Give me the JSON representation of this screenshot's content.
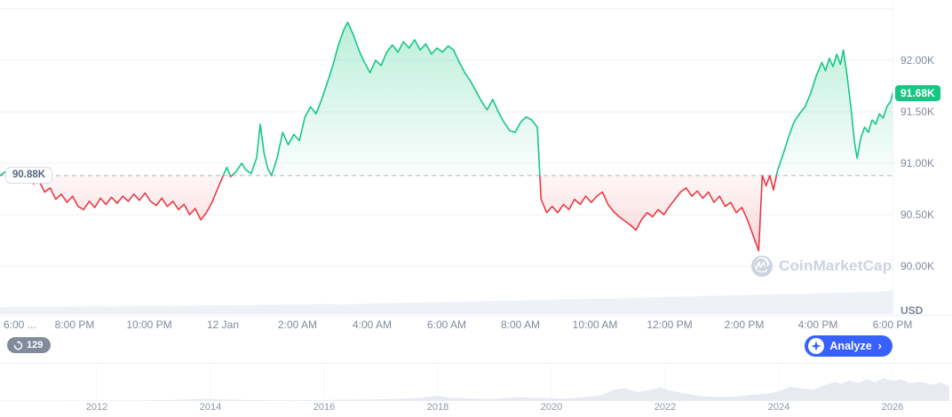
{
  "chart": {
    "baseline_label": "90.88K",
    "current_price_label": "91.68K",
    "y_axis_labels": [
      "92.00K",
      "91.50K",
      "91.00K",
      "90.50K",
      "90.00K"
    ],
    "y_axis_unit": "USD",
    "x_axis_labels": [
      "6:00 ...",
      "8:00 PM",
      "10:00 PM",
      "12 Jan",
      "2:00 AM",
      "4:00 AM",
      "6:00 AM",
      "8:00 AM",
      "10:00 AM",
      "12:00 PM",
      "2:00 PM",
      "4:00 PM",
      "6:00 PM"
    ],
    "watermark": "CoinMarketCap"
  },
  "toolbar": {
    "refresh_count": "129",
    "analyze_label": "Analyze",
    "analyze_chevron": "›"
  },
  "navigator": {
    "year_labels": [
      "2012",
      "2014",
      "2016",
      "2018",
      "2020",
      "2022",
      "2024",
      "2026"
    ]
  },
  "colors": {
    "green": "#16c784",
    "red": "#ea3943",
    "blue": "#3861fb",
    "grid": "#eff2f5",
    "axis_text": "#808a9d",
    "volume_fill": "#eef1f6",
    "navigator_fill": "#e7ebf1"
  },
  "chart_data": {
    "type": "area",
    "title": "BTC/USD intraday price with 90.88K baseline",
    "baseline": 90.88,
    "last_price": 91.68,
    "ylim": [
      89.95,
      92.55
    ],
    "y_ticks": [
      92.0,
      91.5,
      91.0,
      90.5,
      90.0
    ],
    "grid_prices": [
      92.5,
      92.0,
      91.5,
      91.0,
      90.5,
      90.0
    ],
    "x_hours_range": [
      0,
      24
    ],
    "x_tick_hours": [
      0,
      2,
      4,
      6,
      8,
      10,
      12,
      14,
      16,
      18,
      20,
      22,
      24
    ],
    "points": [
      [
        0,
        90.88
      ],
      [
        0.15,
        90.92
      ],
      [
        0.3,
        90.86
      ],
      [
        0.45,
        90.9
      ],
      [
        0.6,
        90.84
      ],
      [
        0.75,
        90.87
      ],
      [
        0.9,
        90.8
      ],
      [
        1.05,
        90.83
      ],
      [
        1.2,
        90.72
      ],
      [
        1.35,
        90.76
      ],
      [
        1.5,
        90.65
      ],
      [
        1.65,
        90.7
      ],
      [
        1.8,
        90.62
      ],
      [
        1.95,
        90.68
      ],
      [
        2.1,
        90.58
      ],
      [
        2.25,
        90.55
      ],
      [
        2.4,
        90.63
      ],
      [
        2.55,
        90.57
      ],
      [
        2.7,
        90.66
      ],
      [
        2.85,
        90.6
      ],
      [
        3,
        90.67
      ],
      [
        3.15,
        90.61
      ],
      [
        3.3,
        90.68
      ],
      [
        3.45,
        90.63
      ],
      [
        3.6,
        90.7
      ],
      [
        3.75,
        90.64
      ],
      [
        3.9,
        90.71
      ],
      [
        4.05,
        90.63
      ],
      [
        4.2,
        90.59
      ],
      [
        4.35,
        90.66
      ],
      [
        4.5,
        90.58
      ],
      [
        4.65,
        90.63
      ],
      [
        4.8,
        90.55
      ],
      [
        4.95,
        90.6
      ],
      [
        5.1,
        90.5
      ],
      [
        5.25,
        90.56
      ],
      [
        5.4,
        90.45
      ],
      [
        5.55,
        90.52
      ],
      [
        5.7,
        90.62
      ],
      [
        5.85,
        90.75
      ],
      [
        6,
        90.88
      ],
      [
        6.1,
        90.96
      ],
      [
        6.2,
        90.87
      ],
      [
        6.35,
        90.92
      ],
      [
        6.5,
        91
      ],
      [
        6.6,
        90.94
      ],
      [
        6.75,
        90.9
      ],
      [
        6.9,
        91.05
      ],
      [
        7,
        91.38
      ],
      [
        7.1,
        91.1
      ],
      [
        7.2,
        90.95
      ],
      [
        7.3,
        90.88
      ],
      [
        7.45,
        91.05
      ],
      [
        7.6,
        91.3
      ],
      [
        7.75,
        91.18
      ],
      [
        7.9,
        91.28
      ],
      [
        8.05,
        91.22
      ],
      [
        8.2,
        91.45
      ],
      [
        8.35,
        91.55
      ],
      [
        8.5,
        91.48
      ],
      [
        8.65,
        91.62
      ],
      [
        8.8,
        91.78
      ],
      [
        8.95,
        91.95
      ],
      [
        9.1,
        92.15
      ],
      [
        9.25,
        92.3
      ],
      [
        9.35,
        92.37
      ],
      [
        9.5,
        92.25
      ],
      [
        9.65,
        92.1
      ],
      [
        9.8,
        91.98
      ],
      [
        9.95,
        91.88
      ],
      [
        10.1,
        92
      ],
      [
        10.25,
        91.95
      ],
      [
        10.4,
        92.08
      ],
      [
        10.55,
        92.15
      ],
      [
        10.7,
        92.08
      ],
      [
        10.85,
        92.18
      ],
      [
        11,
        92.12
      ],
      [
        11.15,
        92.2
      ],
      [
        11.3,
        92.1
      ],
      [
        11.45,
        92.16
      ],
      [
        11.6,
        92.06
      ],
      [
        11.75,
        92.12
      ],
      [
        11.9,
        92.08
      ],
      [
        12.05,
        92.14
      ],
      [
        12.2,
        92.1
      ],
      [
        12.35,
        91.98
      ],
      [
        12.5,
        91.88
      ],
      [
        12.65,
        91.8
      ],
      [
        12.8,
        91.7
      ],
      [
        12.95,
        91.6
      ],
      [
        13.1,
        91.52
      ],
      [
        13.25,
        91.62
      ],
      [
        13.4,
        91.5
      ],
      [
        13.55,
        91.4
      ],
      [
        13.7,
        91.32
      ],
      [
        13.85,
        91.3
      ],
      [
        14,
        91.4
      ],
      [
        14.15,
        91.45
      ],
      [
        14.3,
        91.42
      ],
      [
        14.45,
        91.35
      ],
      [
        14.55,
        90.65
      ],
      [
        14.7,
        90.52
      ],
      [
        14.85,
        90.58
      ],
      [
        15,
        90.52
      ],
      [
        15.15,
        90.6
      ],
      [
        15.3,
        90.55
      ],
      [
        15.45,
        90.65
      ],
      [
        15.6,
        90.6
      ],
      [
        15.75,
        90.68
      ],
      [
        15.9,
        90.62
      ],
      [
        16.05,
        90.68
      ],
      [
        16.2,
        90.72
      ],
      [
        16.35,
        90.6
      ],
      [
        16.5,
        90.53
      ],
      [
        16.65,
        90.48
      ],
      [
        16.8,
        90.44
      ],
      [
        16.95,
        90.4
      ],
      [
        17.1,
        90.35
      ],
      [
        17.25,
        90.45
      ],
      [
        17.4,
        90.52
      ],
      [
        17.55,
        90.48
      ],
      [
        17.7,
        90.55
      ],
      [
        17.85,
        90.5
      ],
      [
        18,
        90.58
      ],
      [
        18.15,
        90.65
      ],
      [
        18.3,
        90.72
      ],
      [
        18.45,
        90.76
      ],
      [
        18.6,
        90.68
      ],
      [
        18.75,
        90.73
      ],
      [
        18.9,
        90.66
      ],
      [
        19.05,
        90.72
      ],
      [
        19.2,
        90.62
      ],
      [
        19.35,
        90.68
      ],
      [
        19.5,
        90.58
      ],
      [
        19.65,
        90.62
      ],
      [
        19.8,
        90.52
      ],
      [
        19.95,
        90.57
      ],
      [
        20.1,
        90.45
      ],
      [
        20.25,
        90.3
      ],
      [
        20.4,
        90.15
      ],
      [
        20.5,
        90.88
      ],
      [
        20.6,
        90.78
      ],
      [
        20.7,
        90.88
      ],
      [
        20.8,
        90.74
      ],
      [
        20.9,
        90.92
      ],
      [
        21.05,
        91.08
      ],
      [
        21.2,
        91.25
      ],
      [
        21.35,
        91.4
      ],
      [
        21.5,
        91.48
      ],
      [
        21.65,
        91.55
      ],
      [
        21.8,
        91.68
      ],
      [
        21.95,
        91.85
      ],
      [
        22.1,
        91.98
      ],
      [
        22.2,
        91.9
      ],
      [
        22.3,
        92.02
      ],
      [
        22.4,
        91.94
      ],
      [
        22.5,
        92.06
      ],
      [
        22.6,
        91.96
      ],
      [
        22.68,
        92.1
      ],
      [
        22.78,
        91.85
      ],
      [
        22.88,
        91.55
      ],
      [
        22.98,
        91.2
      ],
      [
        23.05,
        91.05
      ],
      [
        23.15,
        91.25
      ],
      [
        23.25,
        91.35
      ],
      [
        23.35,
        91.3
      ],
      [
        23.45,
        91.42
      ],
      [
        23.55,
        91.38
      ],
      [
        23.65,
        91.48
      ],
      [
        23.75,
        91.44
      ],
      [
        23.85,
        91.55
      ],
      [
        23.95,
        91.6
      ],
      [
        24,
        91.68
      ]
    ],
    "volume": [
      0.3,
      0.31,
      0.32,
      0.31,
      0.33,
      0.34,
      0.33,
      0.35,
      0.36,
      0.35,
      0.37,
      0.38,
      0.39,
      0.38,
      0.4,
      0.41,
      0.42,
      0.43,
      0.42,
      0.44,
      0.46,
      0.48,
      0.5,
      0.51,
      0.53,
      0.55,
      0.57,
      0.58,
      0.6,
      0.62,
      0.64,
      0.66,
      0.67,
      0.69,
      0.72,
      0.74,
      0.76,
      0.78,
      0.8,
      0.82,
      0.84,
      0.86,
      0.88,
      0.9,
      0.92,
      0.94,
      0.96,
      1.0
    ],
    "navigator": {
      "x_years_range": [
        2010.3,
        2027.05
      ],
      "year_ticks": [
        2012,
        2014,
        2016,
        2018,
        2020,
        2022,
        2024,
        2026
      ],
      "values": [
        [
          2010.3,
          0.01
        ],
        [
          2011,
          0.01
        ],
        [
          2012,
          0.015
        ],
        [
          2012.8,
          0.02
        ],
        [
          2013.4,
          0.03
        ],
        [
          2013.9,
          0.06
        ],
        [
          2014.3,
          0.035
        ],
        [
          2014.8,
          0.025
        ],
        [
          2015.5,
          0.02
        ],
        [
          2016.2,
          0.03
        ],
        [
          2016.8,
          0.04
        ],
        [
          2017.4,
          0.06
        ],
        [
          2017.8,
          0.1
        ],
        [
          2018.0,
          0.14
        ],
        [
          2018.2,
          0.09
        ],
        [
          2018.6,
          0.07
        ],
        [
          2019.0,
          0.05
        ],
        [
          2019.4,
          0.1
        ],
        [
          2019.7,
          0.09
        ],
        [
          2020.0,
          0.08
        ],
        [
          2020.2,
          0.06
        ],
        [
          2020.6,
          0.1
        ],
        [
          2020.9,
          0.16
        ],
        [
          2021.1,
          0.3
        ],
        [
          2021.3,
          0.34
        ],
        [
          2021.5,
          0.24
        ],
        [
          2021.7,
          0.28
        ],
        [
          2021.9,
          0.36
        ],
        [
          2022.1,
          0.28
        ],
        [
          2022.3,
          0.22
        ],
        [
          2022.6,
          0.14
        ],
        [
          2022.9,
          0.11
        ],
        [
          2023.2,
          0.12
        ],
        [
          2023.5,
          0.16
        ],
        [
          2023.8,
          0.2
        ],
        [
          2024.0,
          0.26
        ],
        [
          2024.2,
          0.38
        ],
        [
          2024.4,
          0.34
        ],
        [
          2024.6,
          0.3
        ],
        [
          2024.8,
          0.42
        ],
        [
          2025.0,
          0.52
        ],
        [
          2025.1,
          0.46
        ],
        [
          2025.25,
          0.56
        ],
        [
          2025.4,
          0.48
        ],
        [
          2025.55,
          0.58
        ],
        [
          2025.7,
          0.5
        ],
        [
          2025.85,
          0.62
        ],
        [
          2026.0,
          0.54
        ],
        [
          2026.15,
          0.58
        ],
        [
          2026.3,
          0.48
        ],
        [
          2026.5,
          0.52
        ],
        [
          2026.7,
          0.44
        ],
        [
          2026.85,
          0.5
        ],
        [
          2027.0,
          0.4
        ]
      ]
    }
  }
}
